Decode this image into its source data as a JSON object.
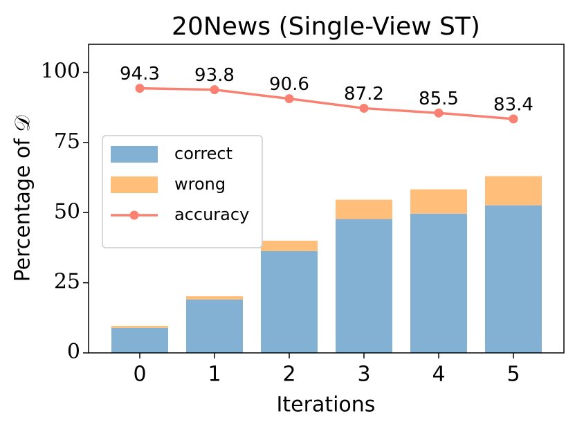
{
  "chart_data": {
    "type": "bar",
    "stacked": true,
    "title": "20News (Single-View ST)",
    "x_label": "Iterations",
    "y_label": "Percentage of 𝒟",
    "categories": [
      "0",
      "1",
      "2",
      "3",
      "4",
      "5"
    ],
    "series": [
      {
        "name": "correct",
        "color": "#82b1d3",
        "values": [
          8.9,
          19.0,
          36.3,
          47.7,
          49.6,
          52.6
        ]
      },
      {
        "name": "wrong",
        "color": "#ffbf7a",
        "values": [
          0.7,
          1.2,
          3.7,
          6.9,
          8.7,
          10.4
        ]
      },
      {
        "name": "accuracy",
        "type": "line",
        "color": "#f88172",
        "values": [
          94.3,
          93.8,
          90.6,
          87.2,
          85.5,
          83.4
        ]
      }
    ],
    "ylim": [
      0,
      110
    ],
    "yticks": [
      0,
      25,
      50,
      75,
      100
    ],
    "grid": false,
    "legend": "center left"
  }
}
